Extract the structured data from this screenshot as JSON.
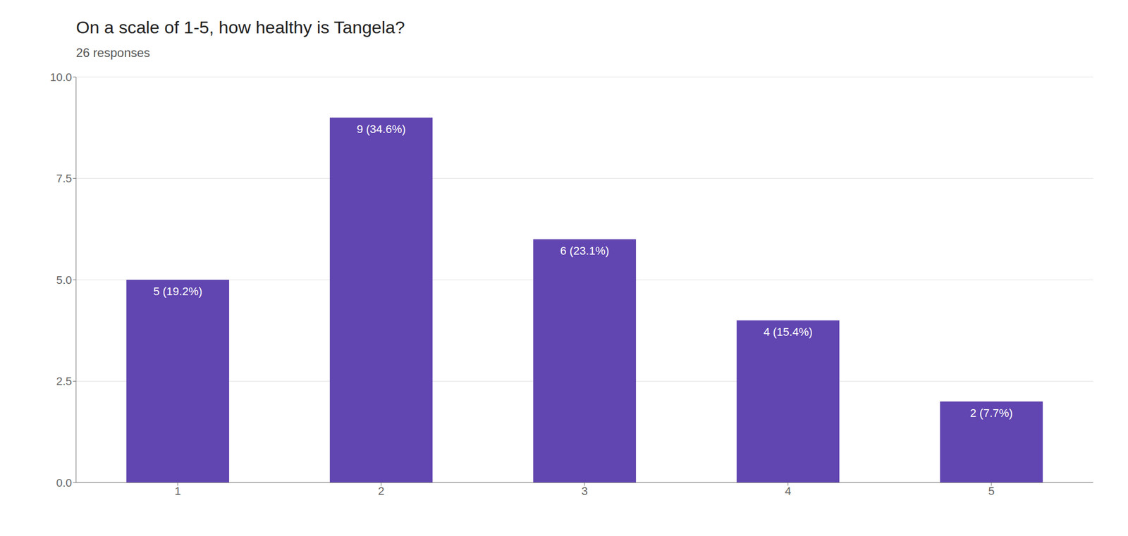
{
  "chart_data": {
    "type": "bar",
    "title": "On a scale of 1-5, how healthy is Tangela?",
    "subtitle": "26 responses",
    "categories": [
      1,
      2,
      3,
      4,
      5
    ],
    "values": [
      5,
      9,
      6,
      4,
      2
    ],
    "value_labels": [
      "5 (19.2%)",
      "9 (34.6%)",
      "6 (23.1%)",
      "4 (15.4%)",
      "2 (7.7%)"
    ],
    "data_labels": true,
    "color": "#6145b0",
    "ylim": [
      0,
      10
    ],
    "yticks": [
      {
        "value": 0,
        "label": "0.0"
      },
      2.5,
      {
        "value": 5,
        "label": "5.0"
      },
      7.5,
      {
        "value": 10,
        "label": "10.0"
      }
    ],
    "grid": true
  }
}
